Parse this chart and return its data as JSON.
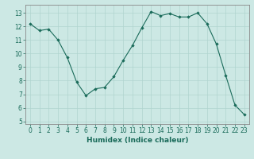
{
  "x": [
    0,
    1,
    2,
    3,
    4,
    5,
    6,
    7,
    8,
    9,
    10,
    11,
    12,
    13,
    14,
    15,
    16,
    17,
    18,
    19,
    20,
    21,
    22,
    23
  ],
  "y": [
    12.2,
    11.7,
    11.8,
    11.0,
    9.7,
    7.9,
    6.9,
    7.4,
    7.5,
    8.3,
    9.5,
    10.6,
    11.9,
    13.1,
    12.8,
    12.95,
    12.7,
    12.7,
    13.0,
    12.2,
    10.7,
    8.4,
    6.2,
    5.5
  ],
  "xlabel": "Humidex (Indice chaleur)",
  "xlim": [
    -0.5,
    23.5
  ],
  "ylim": [
    4.8,
    13.6
  ],
  "yticks": [
    5,
    6,
    7,
    8,
    9,
    10,
    11,
    12,
    13
  ],
  "xticks": [
    0,
    1,
    2,
    3,
    4,
    5,
    6,
    7,
    8,
    9,
    10,
    11,
    12,
    13,
    14,
    15,
    16,
    17,
    18,
    19,
    20,
    21,
    22,
    23
  ],
  "line_color": "#1a6b5a",
  "marker_color": "#1a6b5a",
  "bg_color": "#cce8e4",
  "grid_color": "#b0d4cf",
  "tick_fontsize": 5.5,
  "label_fontsize": 6.5
}
